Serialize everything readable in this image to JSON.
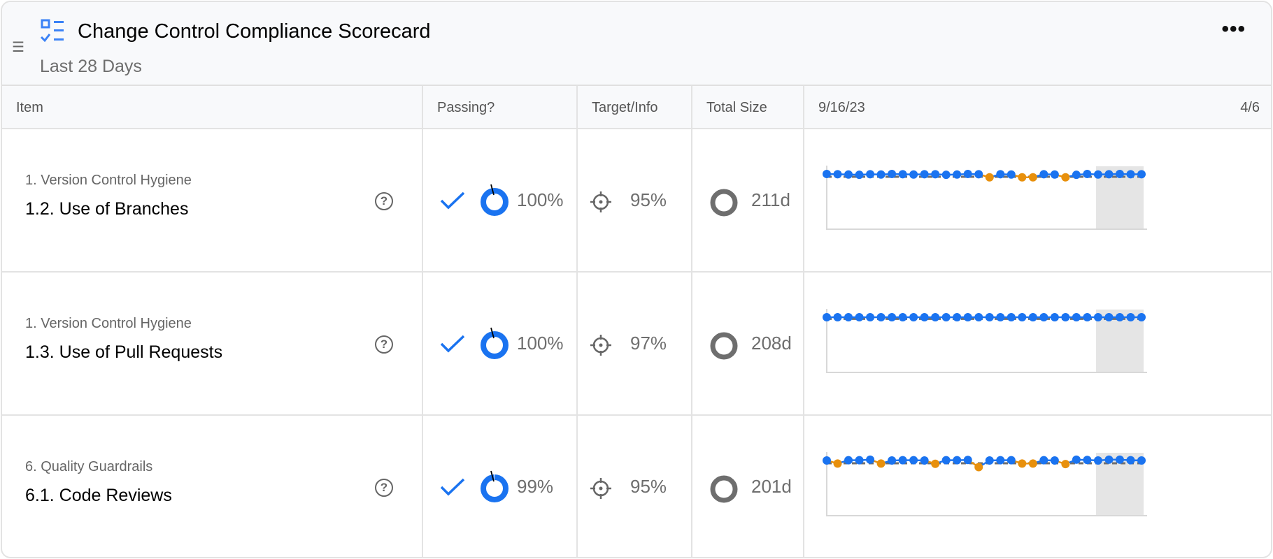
{
  "header": {
    "title": "Change Control Compliance Scorecard",
    "subtitle": "Last 28 Days",
    "more_label": "•••"
  },
  "columns": {
    "item": "Item",
    "passing": "Passing?",
    "target": "Target/Info",
    "size": "Total Size",
    "date_start": "9/16/23",
    "date_end": "4/6"
  },
  "colors": {
    "blue": "#1a73f0",
    "orange": "#e8900c",
    "gray": "#6e6e6e"
  },
  "rows": [
    {
      "category": "1. Version Control Hygiene",
      "name": "1.2. Use of Branches",
      "passing": "100%",
      "passing_value": 100,
      "target": "95%",
      "size": "211d"
    },
    {
      "category": "1. Version Control Hygiene",
      "name": "1.3. Use of Pull Requests",
      "passing": "100%",
      "passing_value": 100,
      "target": "97%",
      "size": "208d"
    },
    {
      "category": "6. Quality Guardrails",
      "name": "6.1. Code Reviews",
      "passing": "99%",
      "passing_value": 99,
      "target": "95%",
      "size": "201d"
    }
  ],
  "chart_data": [
    {
      "type": "line",
      "target": 95,
      "ylim": [
        0,
        100
      ],
      "values": [
        100,
        99.5,
        99,
        98.5,
        99.5,
        99,
        100,
        99.5,
        99,
        99.5,
        99.5,
        98.5,
        99,
        100,
        99.5,
        94,
        99.5,
        99,
        94,
        94,
        99.5,
        99,
        94,
        98.5,
        100,
        99,
        99.5,
        100,
        99.5,
        99.5
      ]
    },
    {
      "type": "line",
      "target": 97,
      "ylim": [
        0,
        100
      ],
      "values": [
        100,
        100,
        100,
        100,
        100,
        100,
        100,
        100,
        100,
        100,
        100,
        100,
        100,
        100,
        100,
        100,
        100,
        100,
        100,
        100,
        100,
        100,
        100,
        100,
        100,
        100,
        100,
        100,
        100,
        100
      ]
    },
    {
      "type": "line",
      "target": 95,
      "ylim": [
        0,
        100
      ],
      "values": [
        100,
        94.5,
        100.5,
        100.5,
        101.5,
        94.5,
        100,
        100.5,
        100.5,
        100,
        94,
        100.5,
        100.5,
        101,
        88,
        100,
        100.5,
        100.5,
        94.5,
        94.5,
        100.5,
        100,
        93.5,
        101.5,
        101,
        100,
        101.5,
        101.5,
        100.5,
        100
      ]
    }
  ]
}
